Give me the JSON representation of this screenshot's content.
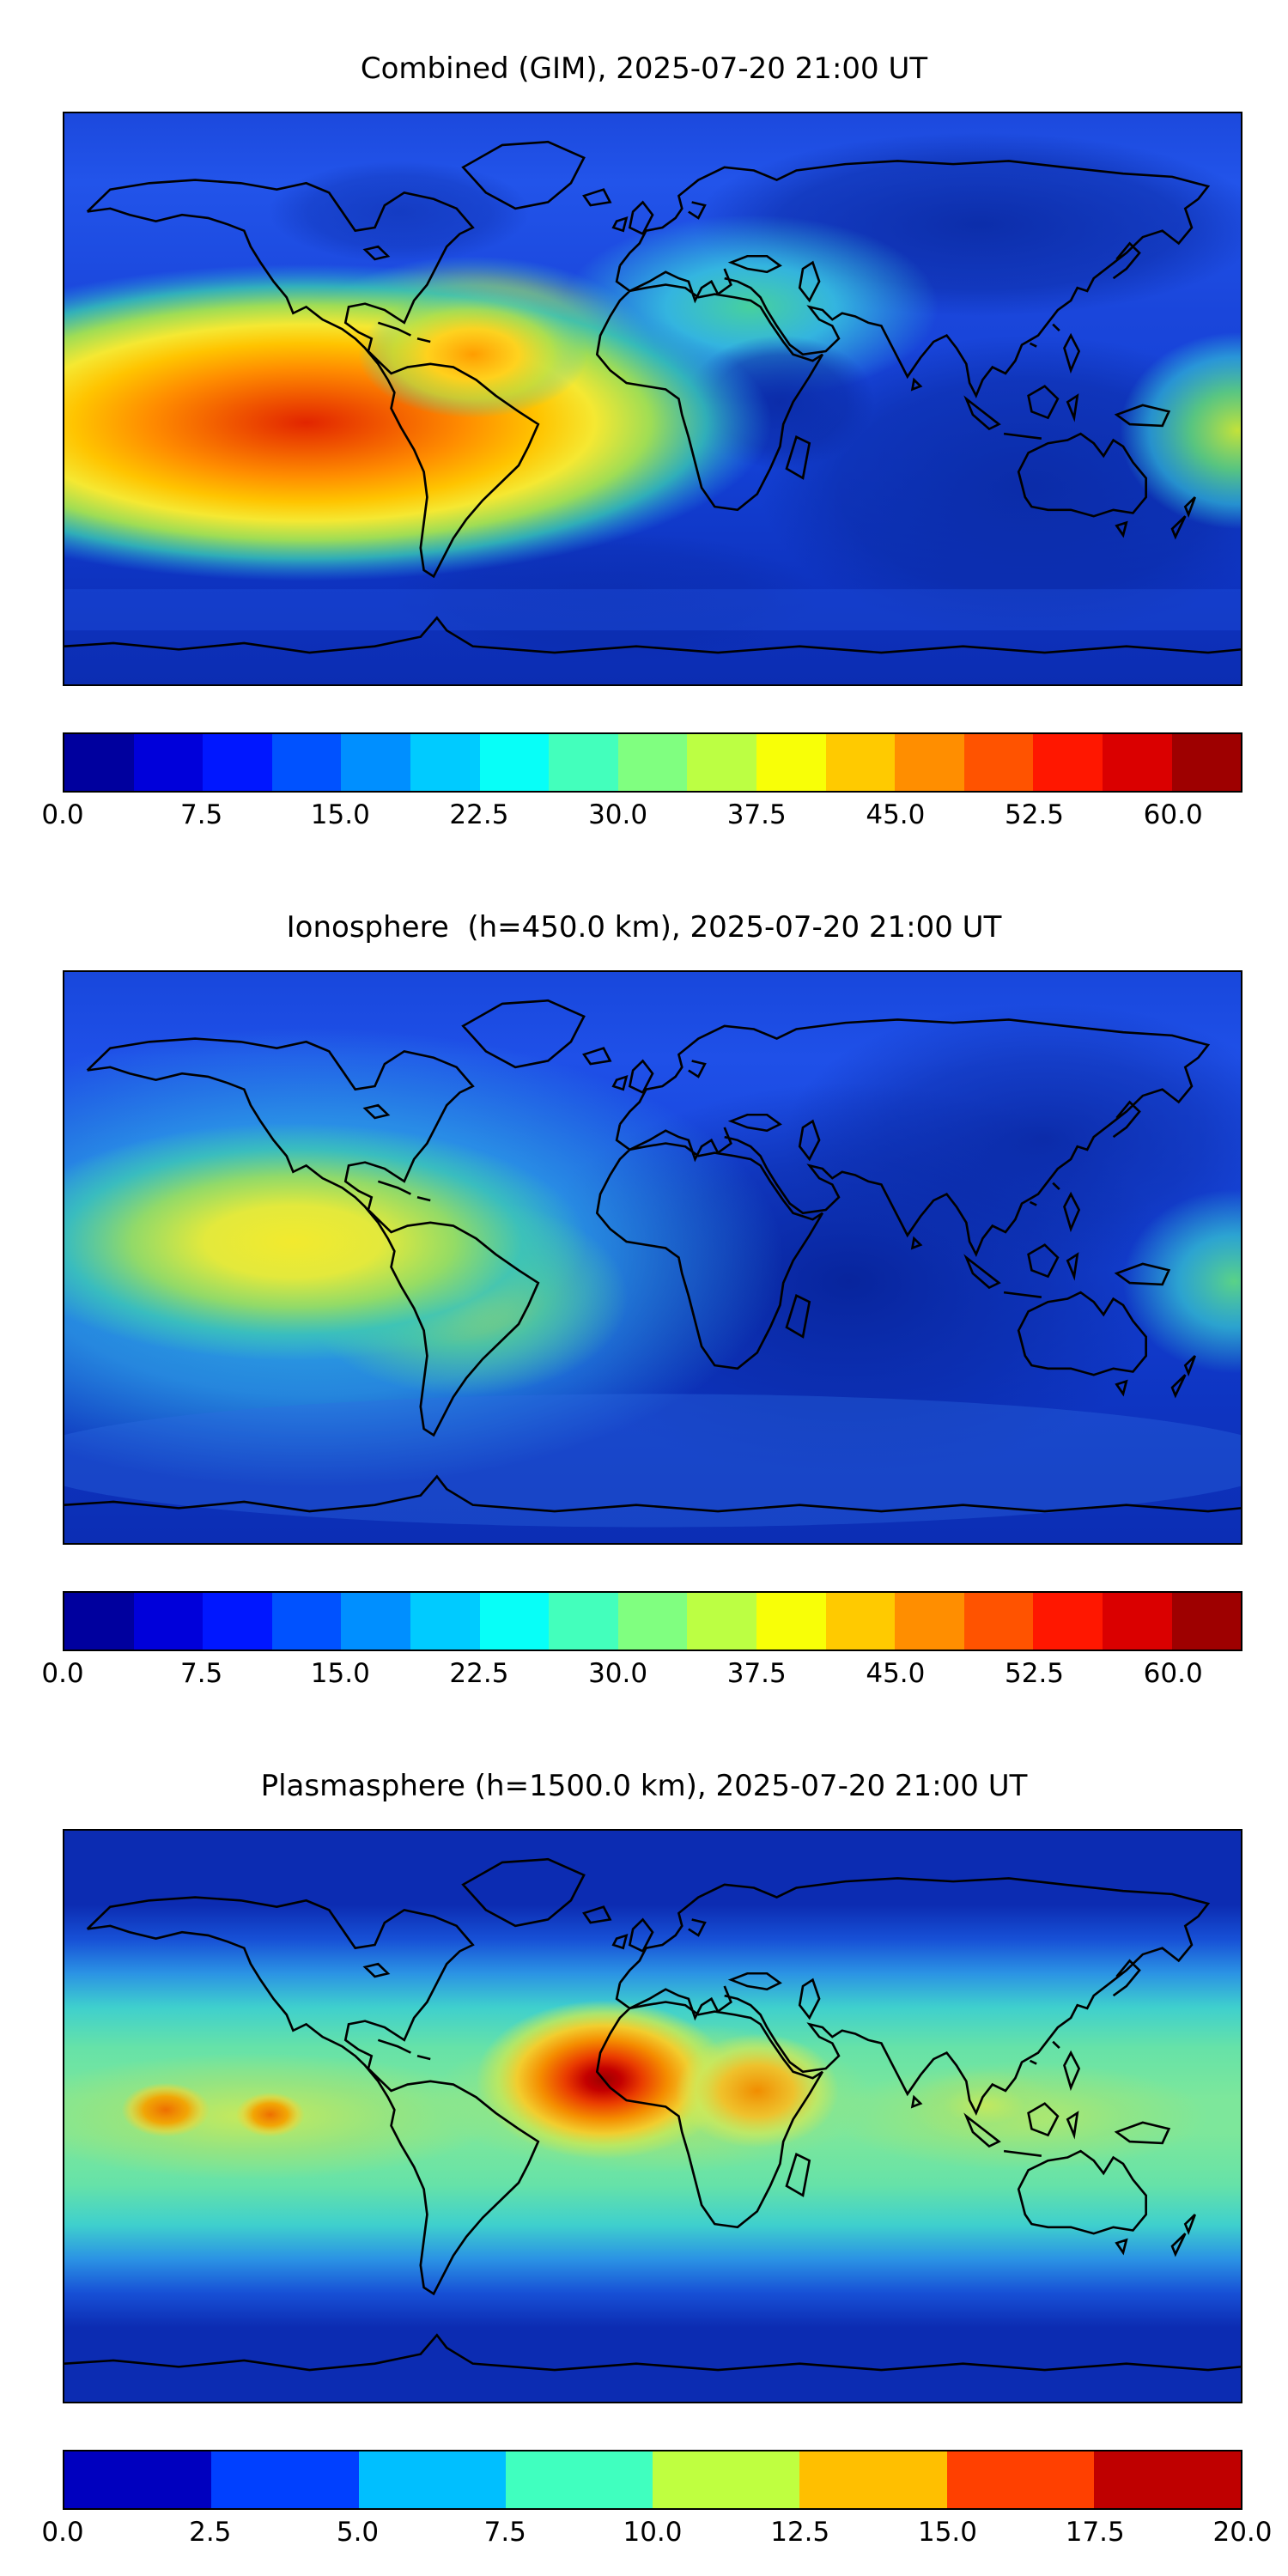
{
  "figure": {
    "panels": [
      {
        "title": "Combined (GIM), 2025-07-20 21:00 UT",
        "colorbar": {
          "vmin": 0,
          "vmax": 63.75,
          "segments": 17,
          "colormap": "jet",
          "tick_values": [
            0,
            7.5,
            15,
            22.5,
            30,
            37.5,
            45,
            52.5,
            60
          ],
          "tick_labels": [
            "0.0",
            "7.5",
            "15.0",
            "22.5",
            "30.0",
            "37.5",
            "45.0",
            "52.5",
            "60.0"
          ]
        }
      },
      {
        "title": "Ionosphere  (h=450.0 km), 2025-07-20 21:00 UT",
        "colorbar": {
          "vmin": 0,
          "vmax": 63.75,
          "segments": 17,
          "colormap": "jet",
          "tick_values": [
            0,
            7.5,
            15,
            22.5,
            30,
            37.5,
            45,
            52.5,
            60
          ],
          "tick_labels": [
            "0.0",
            "7.5",
            "15.0",
            "22.5",
            "30.0",
            "37.5",
            "45.0",
            "52.5",
            "60.0"
          ]
        }
      },
      {
        "title": "Plasmasphere (h=1500.0 km), 2025-07-20 21:00 UT",
        "colorbar": {
          "vmin": 0,
          "vmax": 20,
          "segments": 8,
          "colormap": "jet",
          "tick_values": [
            0,
            2.5,
            5,
            7.5,
            10,
            12.5,
            15,
            17.5,
            20
          ],
          "tick_labels": [
            "0.0",
            "2.5",
            "5.0",
            "7.5",
            "10.0",
            "12.5",
            "15.0",
            "17.5",
            "20.0"
          ]
        }
      }
    ]
  },
  "chart_data": [
    {
      "type": "heatmap",
      "title": "Combined (GIM), 2025-07-20 21:00 UT",
      "projection": "equirectangular world map, lon -180..180, lat -90..90, black coastlines",
      "colormap": "jet",
      "levels": {
        "min": 0,
        "max": 63.75,
        "step": 3.75
      },
      "colorbar_ticks": [
        0,
        7.5,
        15,
        22.5,
        30,
        37.5,
        45,
        52.5,
        60
      ],
      "features": [
        {
          "region": "equatorial eastern Pacific (global peak, red core)",
          "lon": -130,
          "lat": -2,
          "value": 58
        },
        {
          "region": "northern South America / Caribbean (orange lobe)",
          "lon": -65,
          "lat": 12,
          "value": 46
        },
        {
          "region": "Europe / Mediterranean (cyan-green patch)",
          "lon": 10,
          "lat": 42,
          "value": 24
        },
        {
          "region": "west-central Africa local minimum (dark blue)",
          "lon": 8,
          "lat": 5,
          "value": 7
        },
        {
          "region": "central / east Asia night side (dark blue)",
          "lon": 100,
          "lat": 45,
          "value": 6
        },
        {
          "region": "western Pacific near map edge (green-yellow)",
          "lon": 178,
          "lat": -10,
          "value": 30
        },
        {
          "region": "southern high latitudes",
          "lon": 0,
          "lat": -65,
          "value": 5
        }
      ]
    },
    {
      "type": "heatmap",
      "title": "Ionosphere  (h=450.0 km), 2025-07-20 21:00 UT",
      "projection": "equirectangular world map, lon -180..180, lat -90..90, black coastlines",
      "colormap": "jet",
      "levels": {
        "min": 0,
        "max": 63.75,
        "step": 3.75
      },
      "colorbar_ticks": [
        0,
        7.5,
        15,
        22.5,
        30,
        37.5,
        45,
        52.5,
        60
      ],
      "features": [
        {
          "region": "equatorial eastern Pacific (yellow peak)",
          "lon": -125,
          "lat": 2,
          "value": 40
        },
        {
          "region": "northern South America (yellow-green extension)",
          "lon": -60,
          "lat": -8,
          "value": 30
        },
        {
          "region": "northeast Pacific (cyan)",
          "lon": -150,
          "lat": 30,
          "value": 22
        },
        {
          "region": "Africa / Arabia night-side minimum (darkest navy)",
          "lon": 25,
          "lat": 15,
          "value": 3
        },
        {
          "region": "Europe (light blue)",
          "lon": 10,
          "lat": 48,
          "value": 12
        },
        {
          "region": "western Pacific near map edge (green)",
          "lon": 178,
          "lat": -8,
          "value": 22
        },
        {
          "region": "southern mid-latitude cyan band",
          "lon": -40,
          "lat": -48,
          "value": 14
        }
      ]
    },
    {
      "type": "heatmap",
      "title": "Plasmasphere (h=1500.0 km), 2025-07-20 21:00 UT",
      "projection": "equirectangular world map, lon -180..180, lat -90..90, black coastlines",
      "colormap": "jet",
      "levels": {
        "min": 0,
        "max": 20,
        "step": 2.5
      },
      "colorbar_ticks": [
        0,
        2.5,
        5,
        7.5,
        10,
        12.5,
        15,
        17.5,
        20
      ],
      "features": [
        {
          "region": "equatorial green/cyan band",
          "lat_extent": [
            -30,
            30
          ],
          "value": "7.5 - 12.5"
        },
        {
          "region": "central Pacific orange hotspot",
          "lon": -150,
          "lat": 2,
          "value": 16
        },
        {
          "region": "second Pacific orange hotspot",
          "lon": -128,
          "lat": 0,
          "value": 16
        },
        {
          "region": "west Africa peak with dark-red core",
          "lon": -16,
          "lat": 12,
          "value": 19
        },
        {
          "region": "northeast Africa orange hotspot",
          "lon": 32,
          "lat": 8,
          "value": 15
        },
        {
          "region": "south Asia band bump (yellow-green)",
          "lon": 95,
          "lat": 5,
          "value": 11
        },
        {
          "region": "polar regions (dark blue)",
          "value": "< 2.5"
        }
      ]
    }
  ]
}
